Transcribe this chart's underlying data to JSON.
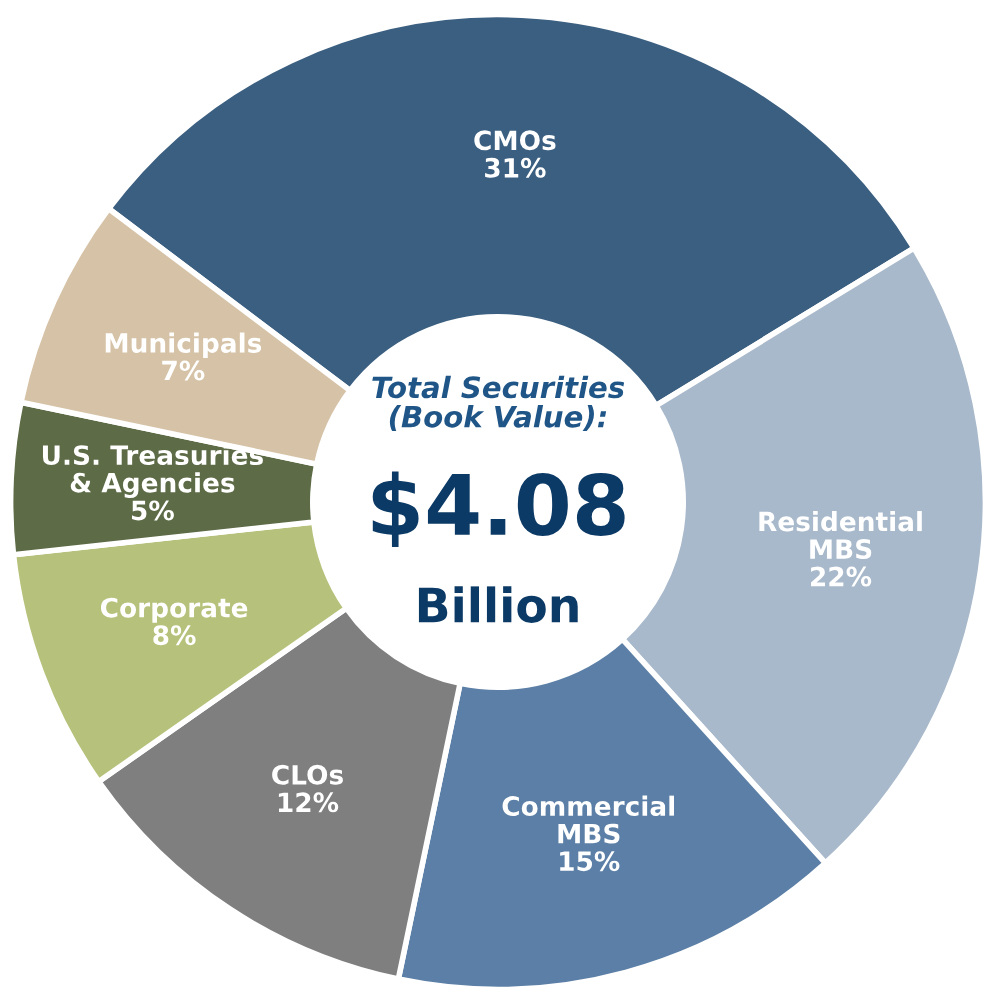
{
  "chart_data": {
    "type": "donut",
    "title": "Total Securities\n(Book Value):",
    "annotations": [
      "$4.08",
      "Billion"
    ],
    "categories": [
      "CMOs",
      "Residential\nMBS",
      "Commercial\nMBS",
      "CLOs",
      "Corporate",
      "U.S. Treasuries\n& Agencies",
      "Municipals"
    ],
    "values": [
      31,
      22,
      15,
      12,
      8,
      5,
      7
    ],
    "value_labels": [
      "31%",
      "22%",
      "15%",
      "12%",
      "8%",
      "5%",
      "7%"
    ],
    "colors": [
      "#3b5f80",
      "#a8b9cb",
      "#5b7fa6",
      "#7f7f7f",
      "#b6c27b",
      "#5d6b46",
      "#d6c3a7"
    ],
    "legend": false
  }
}
